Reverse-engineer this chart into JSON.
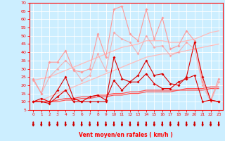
{
  "x": [
    0,
    1,
    2,
    3,
    4,
    5,
    6,
    7,
    8,
    9,
    10,
    11,
    12,
    13,
    14,
    15,
    16,
    17,
    18,
    19,
    20,
    21,
    22,
    23
  ],
  "series": [
    {
      "name": "max_gust",
      "color": "#ff9999",
      "alpha": 1.0,
      "linewidth": 0.8,
      "markersize": 2.0,
      "marker": "D",
      "y": [
        24,
        15,
        34,
        34,
        41,
        29,
        28,
        30,
        51,
        37,
        66,
        68,
        51,
        47,
        66,
        48,
        61,
        42,
        44,
        53,
        47,
        22,
        11,
        24
      ]
    },
    {
      "name": "max_wind",
      "color": "#ff9999",
      "alpha": 0.7,
      "linewidth": 0.8,
      "markersize": 2.0,
      "marker": "D",
      "y": [
        23,
        15,
        25,
        30,
        35,
        30,
        23,
        26,
        39,
        29,
        52,
        48,
        46,
        39,
        50,
        43,
        44,
        38,
        40,
        46,
        42,
        20,
        10,
        22
      ]
    },
    {
      "name": "trend_high",
      "color": "#ffbbbb",
      "alpha": 1.0,
      "linewidth": 0.9,
      "markersize": 0,
      "marker": "",
      "y": [
        23,
        24,
        25,
        27,
        29,
        31,
        33,
        35,
        37,
        39,
        41,
        43,
        44,
        45,
        47,
        47,
        47,
        46,
        46,
        47,
        48,
        50,
        52,
        53
      ]
    },
    {
      "name": "trend_mid",
      "color": "#ffbbbb",
      "alpha": 1.0,
      "linewidth": 0.9,
      "markersize": 0,
      "marker": "",
      "y": [
        10,
        11,
        13,
        15,
        17,
        19,
        21,
        23,
        25,
        27,
        29,
        31,
        33,
        35,
        37,
        38,
        39,
        39,
        40,
        41,
        42,
        43,
        44,
        45
      ]
    },
    {
      "name": "avg_gust",
      "color": "#dd0000",
      "alpha": 1.0,
      "linewidth": 0.8,
      "markersize": 2.0,
      "marker": "D",
      "y": [
        10,
        12,
        10,
        17,
        25,
        12,
        10,
        10,
        10,
        10,
        37,
        24,
        22,
        26,
        35,
        26,
        27,
        21,
        20,
        25,
        46,
        25,
        11,
        10
      ]
    },
    {
      "name": "avg_wind",
      "color": "#dd0000",
      "alpha": 1.0,
      "linewidth": 0.8,
      "markersize": 2.0,
      "marker": "D",
      "y": [
        10,
        10,
        9,
        13,
        17,
        10,
        10,
        13,
        14,
        11,
        23,
        17,
        22,
        22,
        27,
        21,
        18,
        18,
        22,
        24,
        26,
        10,
        11,
        10
      ]
    },
    {
      "name": "trend_low2",
      "color": "#ff5555",
      "alpha": 1.0,
      "linewidth": 0.9,
      "markersize": 0,
      "marker": "",
      "y": [
        10,
        10,
        10,
        11,
        12,
        12,
        13,
        13,
        14,
        14,
        15,
        15,
        16,
        16,
        17,
        17,
        17,
        17,
        17,
        18,
        18,
        18,
        19,
        19
      ]
    },
    {
      "name": "trend_low1",
      "color": "#ff5555",
      "alpha": 1.0,
      "linewidth": 0.9,
      "markersize": 0,
      "marker": "",
      "y": [
        10,
        10,
        10,
        10,
        11,
        11,
        12,
        12,
        13,
        13,
        14,
        14,
        15,
        15,
        16,
        16,
        16,
        16,
        17,
        17,
        17,
        17,
        18,
        18
      ]
    }
  ],
  "xlim": [
    -0.5,
    23.5
  ],
  "ylim": [
    5,
    70
  ],
  "yticks": [
    5,
    10,
    15,
    20,
    25,
    30,
    35,
    40,
    45,
    50,
    55,
    60,
    65,
    70
  ],
  "xticks": [
    0,
    1,
    2,
    3,
    4,
    5,
    6,
    7,
    8,
    9,
    10,
    11,
    12,
    13,
    14,
    15,
    16,
    17,
    18,
    19,
    20,
    21,
    22,
    23
  ],
  "xlabel": "Vent moyen/en rafales ( km/h )",
  "bg_color": "#cceeff",
  "grid_color": "#ffffff",
  "axis_color": "#ff0000",
  "arrow_color": "#cc0000"
}
